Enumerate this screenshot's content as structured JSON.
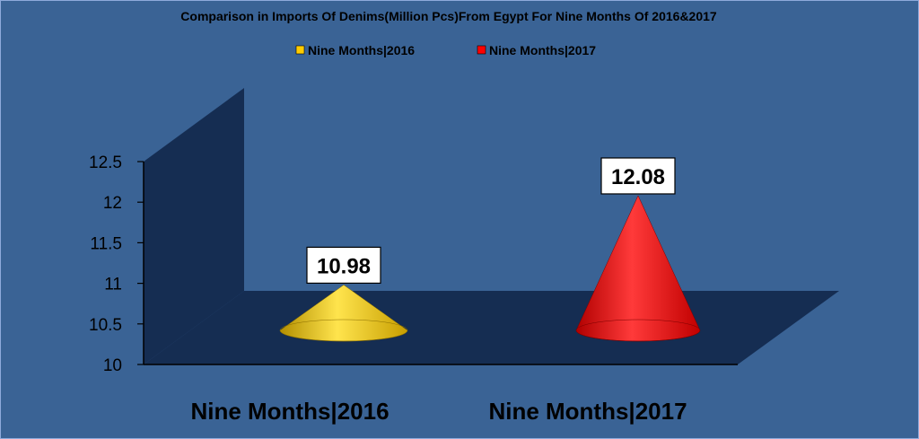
{
  "colors": {
    "background": "#3a6395",
    "wall": "#152d52",
    "floor": "#152d52",
    "series_2016": "#ffcc00",
    "series_2017": "#ff0000"
  },
  "chart_data": {
    "type": "bar",
    "shape": "cone",
    "title": "Comparison in Imports Of Denims(Million Pcs)From Egypt For Nine Months Of 2016&2017",
    "categories": [
      "Nine Months|2016",
      "Nine Months|2017"
    ],
    "series": [
      {
        "name": "Nine Months|2016",
        "color": "#ffcc00",
        "values": [
          10.98,
          null
        ]
      },
      {
        "name": "Nine Months|2017",
        "color": "#ff0000",
        "values": [
          null,
          12.08
        ]
      }
    ],
    "data_labels": [
      "10.98",
      "12.08"
    ],
    "yticks": [
      "10",
      "10.5",
      "11",
      "11.5",
      "12",
      "12.5"
    ],
    "ylim": [
      10,
      12.5
    ],
    "legend": "top",
    "grid": false
  }
}
